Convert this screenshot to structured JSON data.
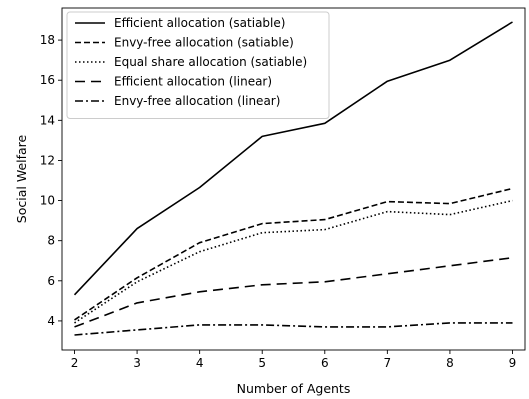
{
  "chart_data": {
    "type": "line",
    "title": "",
    "xlabel": "Number of Agents",
    "ylabel": "Social Welfare",
    "x": [
      2,
      3,
      4,
      5,
      6,
      7,
      8,
      9
    ],
    "xlim": [
      1.8,
      9.2
    ],
    "ylim": [
      2.55,
      19.6
    ],
    "xticks": [
      2,
      3,
      4,
      5,
      6,
      7,
      8,
      9
    ],
    "yticks": [
      4,
      6,
      8,
      10,
      12,
      14,
      16,
      18
    ],
    "grid": false,
    "legend_position": "upper-left",
    "series": [
      {
        "name": "Efficient allocation (satiable)",
        "style": "solid",
        "color": "#000000",
        "values": [
          5.3,
          8.6,
          10.65,
          13.2,
          13.85,
          15.95,
          17.0,
          18.9
        ]
      },
      {
        "name": "Envy-free allocation (satiable)",
        "style": "dashed",
        "color": "#000000",
        "values": [
          4.05,
          6.15,
          7.9,
          8.85,
          9.05,
          9.95,
          9.85,
          10.6
        ]
      },
      {
        "name": "Equal share allocation (satiable)",
        "style": "dotted",
        "color": "#000000",
        "values": [
          3.9,
          5.95,
          7.45,
          8.4,
          8.55,
          9.45,
          9.3,
          10.0
        ]
      },
      {
        "name": "Efficient allocation (linear)",
        "style": "longdash",
        "color": "#000000",
        "values": [
          3.7,
          4.9,
          5.45,
          5.8,
          5.95,
          6.35,
          6.75,
          7.15
        ]
      },
      {
        "name": "Envy-free allocation (linear)",
        "style": "dashdot",
        "color": "#000000",
        "values": [
          3.3,
          3.55,
          3.8,
          3.8,
          3.7,
          3.7,
          3.9,
          3.9
        ]
      }
    ]
  }
}
